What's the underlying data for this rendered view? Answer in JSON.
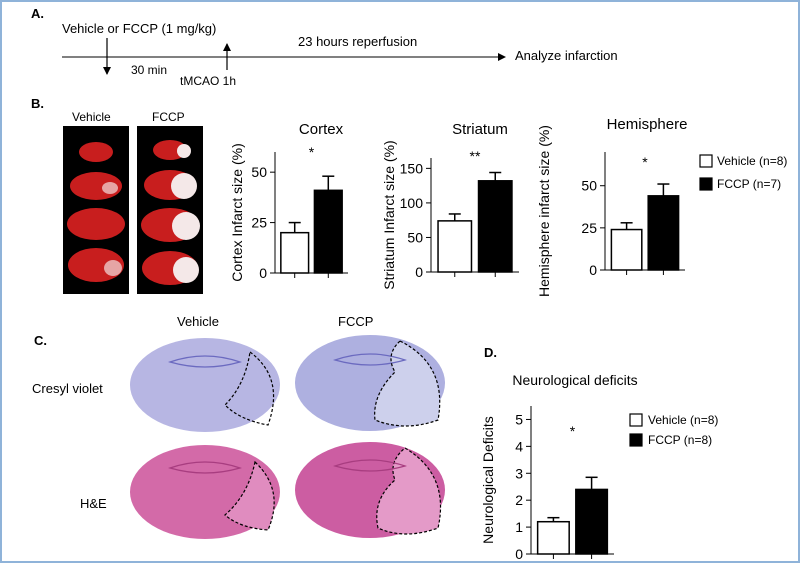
{
  "panel_labels": {
    "a": "A.",
    "b": "B.",
    "c": "C.",
    "d": "D."
  },
  "timeline": {
    "treatment": "Vehicle or FCCP (1 mg/kg)",
    "interval": "30 min",
    "reperfusion": "23 hours reperfusion",
    "occlusion": "tMCAO  1h",
    "endpoint": "Analyze infarction"
  },
  "ttc": {
    "vehicle_label": "Vehicle",
    "fccp_label": "FCCP"
  },
  "histology": {
    "vehicle_label": "Vehicle",
    "fccp_label": "FCCP",
    "row1": "Cresyl violet",
    "row2": "H&E"
  },
  "legend_b": {
    "vehicle": "Vehicle (n=8)",
    "fccp": "FCCP (n=7)"
  },
  "legend_d": {
    "vehicle": "Vehicle (n=8)",
    "fccp": "FCCP (n=8)"
  },
  "colors": {
    "vehicle_fill": "#ffffff",
    "fccp_fill": "#000000",
    "ttc_red": "#c81e1e",
    "cresyl": "#b7b6e3",
    "he": "#d36aa8",
    "frame": "#8fb3d9"
  },
  "chart_data": [
    {
      "type": "bar",
      "title": "Cortex",
      "ylabel": "Cortex Infarct size (%)",
      "ylim": [
        0,
        60
      ],
      "yticks": [
        0,
        25,
        50
      ],
      "categories": [
        "Vehicle",
        "FCCP"
      ],
      "values": [
        20,
        41
      ],
      "errors": [
        5,
        7
      ],
      "significance": "*"
    },
    {
      "type": "bar",
      "title": "Striatum",
      "ylabel": "Striatum Infarct size (%)",
      "ylim": [
        0,
        165
      ],
      "yticks": [
        0,
        50,
        100,
        150
      ],
      "categories": [
        "Vehicle",
        "FCCP"
      ],
      "values": [
        74,
        132
      ],
      "errors": [
        10,
        12
      ],
      "significance": "**"
    },
    {
      "type": "bar",
      "title": "Hemisphere",
      "ylabel": "Hemisphere infarct size (%)",
      "ylim": [
        0,
        70
      ],
      "yticks": [
        0,
        25,
        50
      ],
      "categories": [
        "Vehicle",
        "FCCP"
      ],
      "values": [
        24,
        44
      ],
      "errors": [
        4,
        7
      ],
      "significance": "*"
    },
    {
      "type": "bar",
      "title": "Neurological deficits",
      "ylabel": "Neurological Deficits",
      "ylim": [
        0,
        5.5
      ],
      "yticks": [
        0,
        1,
        2,
        3,
        4,
        5
      ],
      "categories": [
        "Vehicle",
        "FCCP"
      ],
      "values": [
        1.2,
        2.4
      ],
      "errors": [
        0.15,
        0.45
      ],
      "significance": "*"
    }
  ]
}
